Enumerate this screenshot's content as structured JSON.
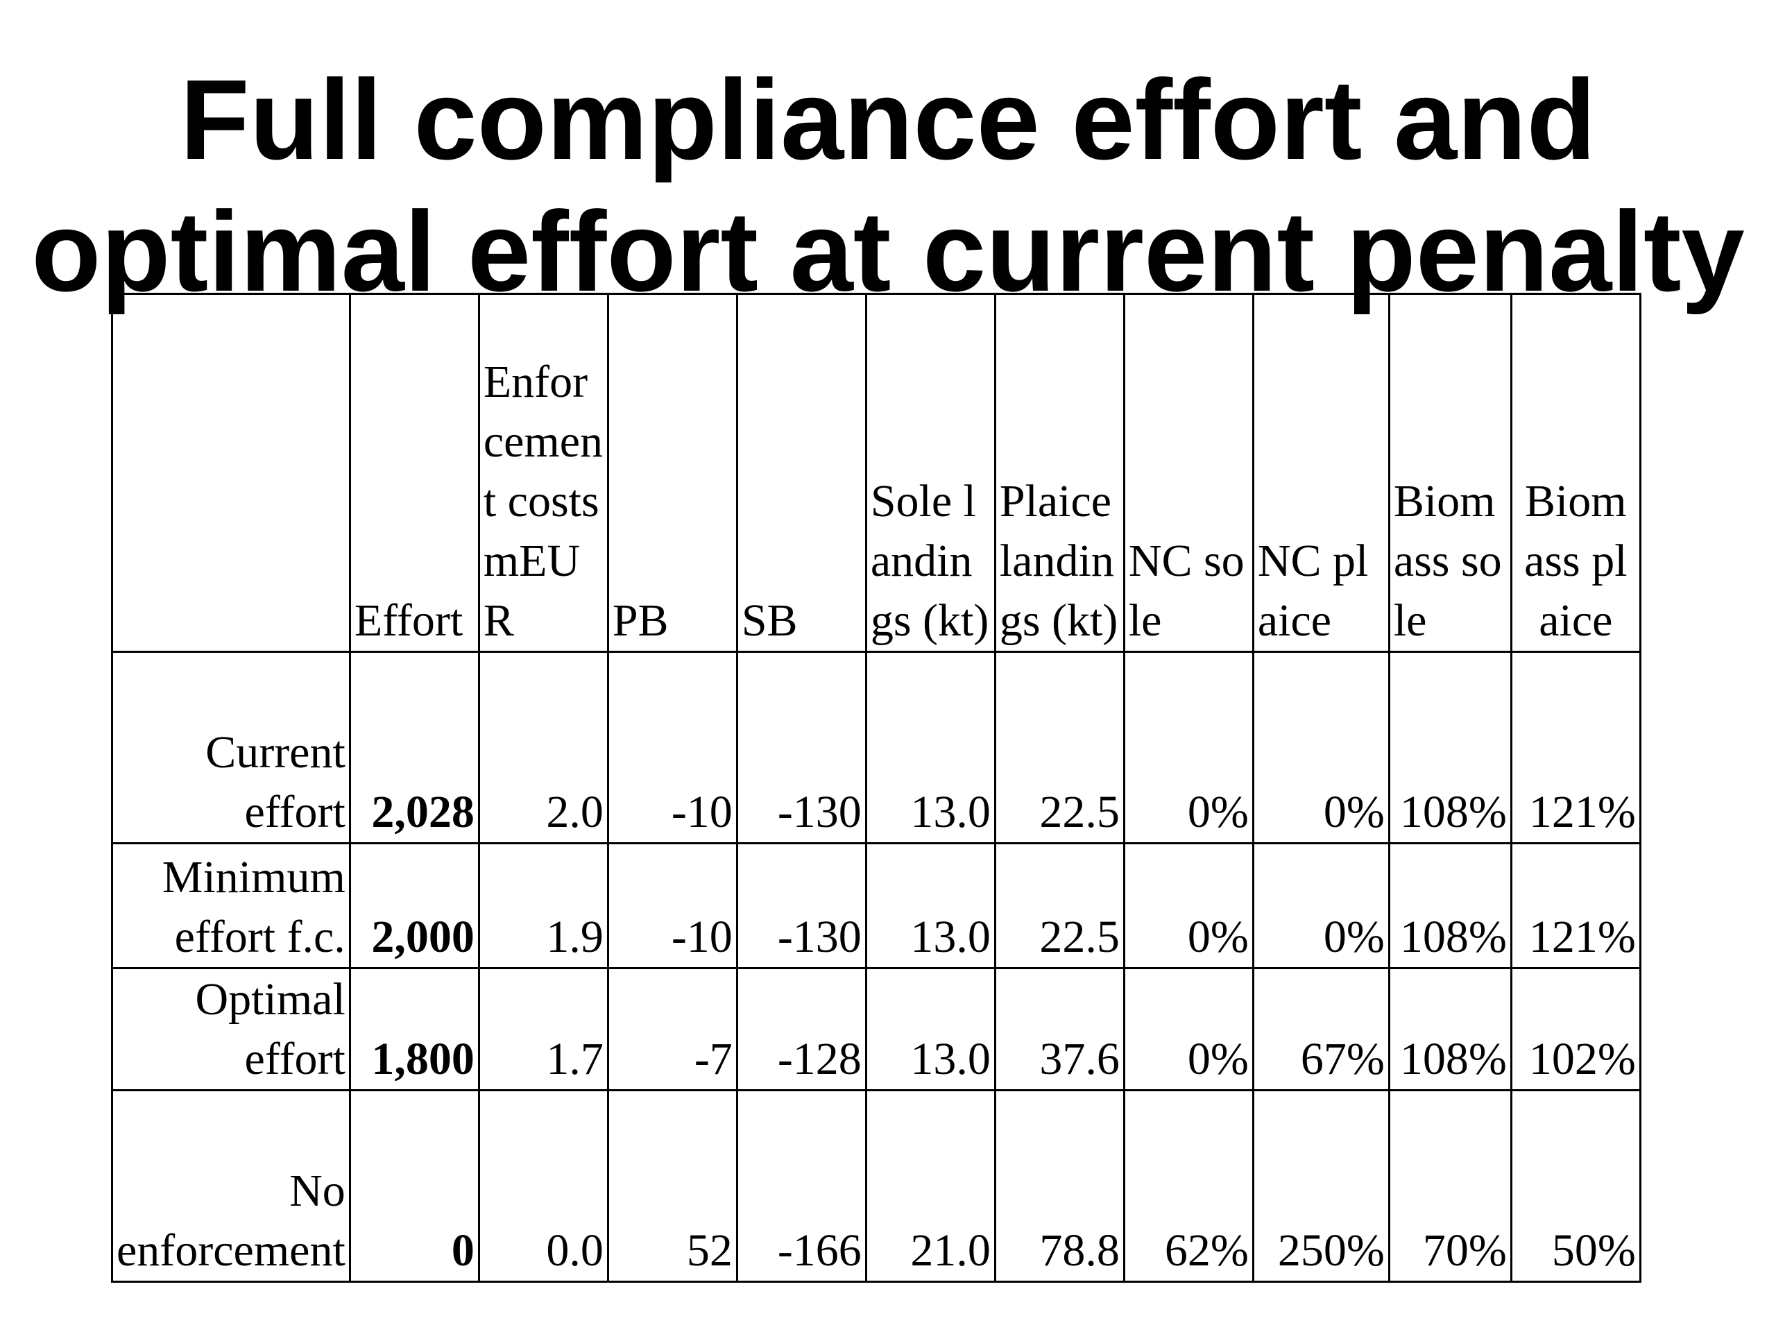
{
  "slide": {
    "title_line1": "Full compliance effort and",
    "title_line2": "optimal effort at current penalty"
  },
  "table": {
    "headers": [
      "",
      "Effort",
      "Enforcement costs mEUR",
      "PB",
      "SB",
      "Sole landings (kt)",
      "Plaice landings (kt)",
      "NC sole",
      "NC plaice",
      "Biomass sole",
      "Biomass plaice"
    ],
    "rows": [
      {
        "label": "Current effort",
        "cells": [
          "2,028",
          "2.0",
          "-10",
          "-130",
          "13.0",
          "22.5",
          "0%",
          "0%",
          "108%",
          "121%"
        ]
      },
      {
        "label": "Minimum effort f.c.",
        "cells": [
          "2,000",
          "1.9",
          "-10",
          "-130",
          "13.0",
          "22.5",
          "0%",
          "0%",
          "108%",
          "121%"
        ]
      },
      {
        "label": "Optimal effort",
        "cells": [
          "1,800",
          "1.7",
          "-7",
          "-128",
          "13.0",
          "37.6",
          "0%",
          "67%",
          "108%",
          "102%"
        ]
      },
      {
        "label": "No enforcement",
        "cells": [
          "0",
          "0.0",
          "52",
          "-166",
          "21.0",
          "78.8",
          "62%",
          "250%",
          "70%",
          "50%"
        ]
      }
    ]
  }
}
